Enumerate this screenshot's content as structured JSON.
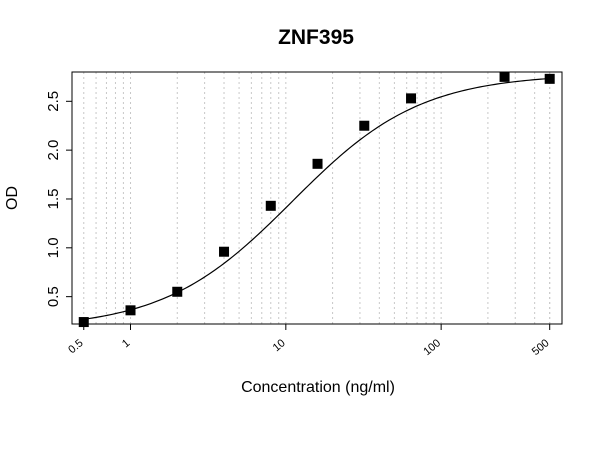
{
  "chart_data": {
    "type": "scatter",
    "title": "ZNF395",
    "xlabel": "Concentration (ng/ml)",
    "ylabel": "OD",
    "x_scale": "log",
    "xlim": [
      0.42,
      600
    ],
    "ylim": [
      0.22,
      2.8
    ],
    "x_ticks": [
      0.5,
      1,
      10,
      100,
      500
    ],
    "x_tick_labels": [
      "0.5",
      "1",
      "10",
      "100",
      "500"
    ],
    "y_ticks": [
      0.5,
      1.0,
      1.5,
      2.0,
      2.5
    ],
    "y_tick_labels": [
      "0.5",
      "1.0",
      "1.5",
      "2.0",
      "2.5"
    ],
    "grid": "vertical dotted at log-decade minor ticks",
    "series": [
      {
        "marker": "square",
        "x": [
          0.5,
          1,
          2,
          4,
          8,
          16,
          32,
          64,
          256,
          500
        ],
        "y": [
          0.24,
          0.36,
          0.55,
          0.96,
          1.43,
          1.86,
          2.25,
          2.53,
          2.75,
          2.73
        ]
      }
    ],
    "fit": {
      "type": "4-parameter logistic",
      "bottom": 0.17,
      "top": 2.78,
      "ec50": 11,
      "hill": 1.05
    }
  }
}
